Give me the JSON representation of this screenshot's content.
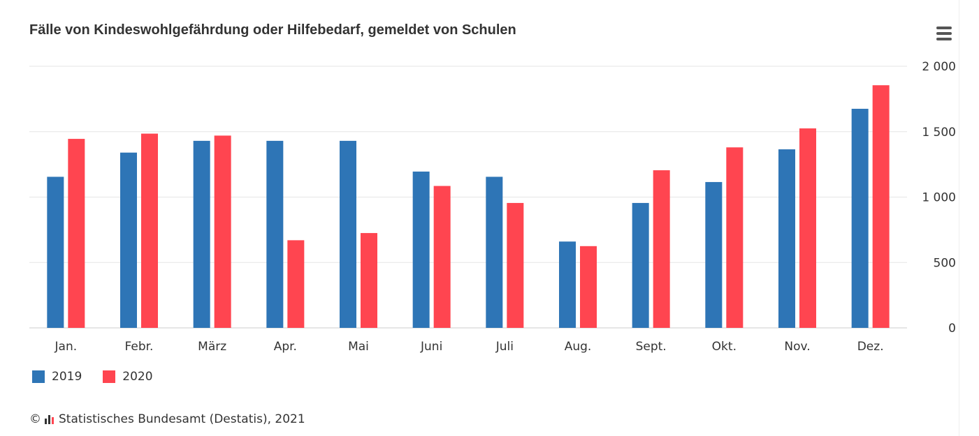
{
  "chart_data": {
    "type": "bar",
    "title": "Fälle von Kindeswohlgefährdung oder Hilfebedarf, gemeldet von Schulen",
    "xlabel": "",
    "ylabel": "",
    "categories": [
      "Jan.",
      "Febr.",
      "März",
      "Apr.",
      "Mai",
      "Juni",
      "Juli",
      "Aug.",
      "Sept.",
      "Okt.",
      "Nov.",
      "Dez."
    ],
    "series": [
      {
        "name": "2019",
        "color": "#2e75b6",
        "values": [
          1155,
          1340,
          1430,
          1430,
          1430,
          1195,
          1155,
          660,
          955,
          1115,
          1365,
          1675
        ]
      },
      {
        "name": "2020",
        "color": "#ff4550",
        "values": [
          1445,
          1485,
          1470,
          670,
          725,
          1085,
          955,
          625,
          1205,
          1380,
          1525,
          1855
        ]
      }
    ],
    "ylim": [
      0,
      2000
    ],
    "yticks": [
      0,
      500,
      1000,
      1500,
      2000
    ],
    "ytick_labels": [
      "0",
      "500",
      "1 000",
      "1 500",
      "2 000"
    ],
    "y_axis_position": "right",
    "grid": true,
    "legend_position": "bottom-left"
  },
  "menu": {
    "icon": "hamburger-menu-icon"
  },
  "credits": {
    "symbol": "©",
    "icon": "destatis-logo-icon",
    "text": "Statistisches Bundesamt (Destatis), 2021"
  }
}
